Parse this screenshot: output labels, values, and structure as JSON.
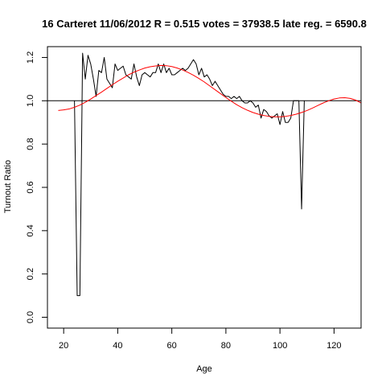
{
  "chart_data": {
    "type": "line",
    "title": "16 Carteret 11/06/2012 R = 0.515 votes = 37938.5 late reg. = 6590.8",
    "xlabel": "Age",
    "ylabel": "Turnout Ratio",
    "xlim": [
      14,
      130
    ],
    "ylim": [
      -0.05,
      1.25
    ],
    "xticks": [
      20,
      40,
      60,
      80,
      100,
      120
    ],
    "yticks": [
      0.0,
      0.2,
      0.4,
      0.6,
      0.8,
      1.0,
      1.2
    ],
    "xtick_labels": [
      "20",
      "40",
      "60",
      "80",
      "100",
      "120"
    ],
    "ytick_labels": [
      "0.0",
      "0.2",
      "0.4",
      "0.6",
      "0.8",
      "1.0",
      "1.2"
    ],
    "reference_line": 1.0,
    "grid": false,
    "colors": {
      "observed": "#000000",
      "fitted": "#ff0000",
      "reference": "#000000"
    },
    "series": [
      {
        "color": "#000000",
        "x": [
          24,
          25,
          26,
          27,
          28,
          29,
          30,
          31,
          32,
          33,
          34,
          35,
          36,
          37,
          38,
          39,
          40,
          41,
          42,
          43,
          44,
          45,
          46,
          47,
          48,
          49,
          50,
          51,
          52,
          53,
          54,
          55,
          56,
          57,
          58,
          59,
          60,
          61,
          62,
          63,
          64,
          65,
          66,
          67,
          68,
          69,
          70,
          71,
          72,
          73,
          74,
          75,
          76,
          77,
          78,
          79,
          80,
          81,
          82,
          83,
          84,
          85,
          86,
          87,
          88,
          89,
          90,
          91,
          92,
          93,
          94,
          95,
          96,
          97,
          98,
          99,
          100,
          101,
          102,
          103,
          104,
          105,
          106,
          107,
          108,
          109
        ],
        "y": [
          1.0,
          0.1,
          0.1,
          1.22,
          1.1,
          1.21,
          1.17,
          1.1,
          1.02,
          1.14,
          1.13,
          1.2,
          1.1,
          1.08,
          1.06,
          1.17,
          1.14,
          1.15,
          1.16,
          1.12,
          1.11,
          1.1,
          1.17,
          1.11,
          1.07,
          1.12,
          1.13,
          1.12,
          1.11,
          1.13,
          1.13,
          1.17,
          1.13,
          1.17,
          1.13,
          1.15,
          1.12,
          1.12,
          1.13,
          1.14,
          1.15,
          1.14,
          1.15,
          1.17,
          1.19,
          1.17,
          1.12,
          1.15,
          1.11,
          1.12,
          1.1,
          1.07,
          1.09,
          1.07,
          1.05,
          1.03,
          1.02,
          1.02,
          1.01,
          1.02,
          1.01,
          1.02,
          1.0,
          0.99,
          0.99,
          1.0,
          0.99,
          0.97,
          0.98,
          0.92,
          0.96,
          0.95,
          0.93,
          0.92,
          0.93,
          0.94,
          0.89,
          0.95,
          0.9,
          0.9,
          0.92,
          1.0,
          1.0,
          1.0,
          0.5,
          1.0
        ]
      },
      {
        "color": "#ff0000",
        "x": [
          18,
          20,
          22,
          24,
          26,
          28,
          30,
          32,
          34,
          36,
          38,
          40,
          42,
          44,
          46,
          48,
          50,
          52,
          54,
          56,
          58,
          60,
          62,
          64,
          66,
          68,
          70,
          72,
          74,
          76,
          78,
          80,
          82,
          84,
          86,
          88,
          90,
          92,
          94,
          96,
          98,
          100,
          102,
          104,
          106,
          108,
          110,
          112,
          114,
          116,
          118,
          120,
          122,
          124,
          126,
          128,
          130
        ],
        "y": [
          0.955,
          0.958,
          0.962,
          0.97,
          0.98,
          0.993,
          1.008,
          1.024,
          1.04,
          1.057,
          1.074,
          1.09,
          1.105,
          1.12,
          1.132,
          1.142,
          1.151,
          1.157,
          1.161,
          1.163,
          1.162,
          1.158,
          1.151,
          1.142,
          1.131,
          1.118,
          1.103,
          1.087,
          1.069,
          1.051,
          1.033,
          1.015,
          0.998,
          0.982,
          0.968,
          0.956,
          0.946,
          0.938,
          0.932,
          0.928,
          0.926,
          0.926,
          0.928,
          0.932,
          0.938,
          0.946,
          0.955,
          0.966,
          0.978,
          0.99,
          1.0,
          1.008,
          1.013,
          1.014,
          1.011,
          1.003,
          0.99
        ]
      }
    ]
  }
}
